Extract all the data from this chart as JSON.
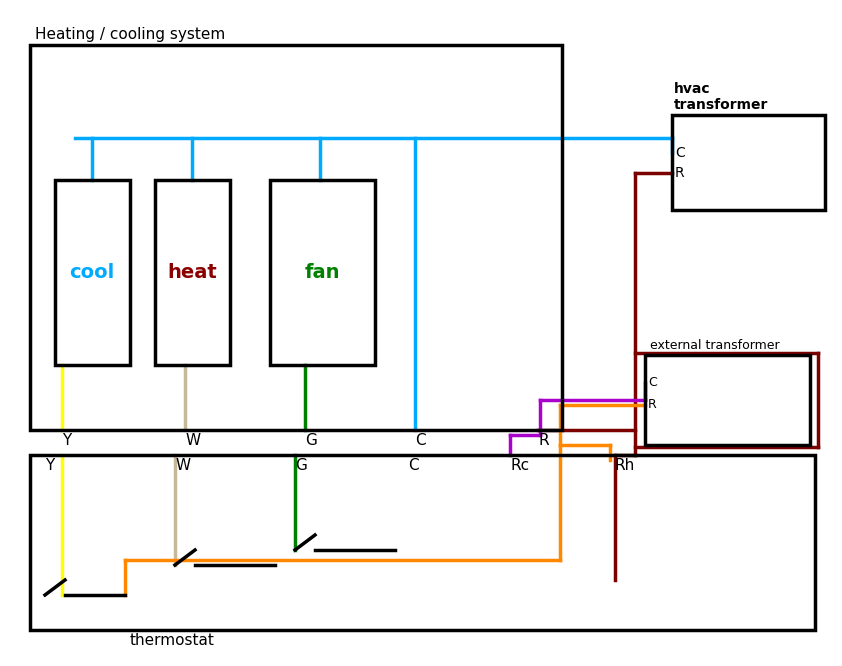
{
  "title_heating": "Heating / cooling system",
  "title_thermostat": "thermostat",
  "title_hvac": "hvac\ntransformer",
  "title_external": "external transformer",
  "bg_color": "#ffffff",
  "wire_colors": {
    "yellow": "#ffff00",
    "tan": "#c8b89a",
    "green": "#008000",
    "cyan": "#00aaff",
    "purple": "#aa00cc",
    "orange": "#ff8800",
    "darkred": "#7b0000",
    "black": "#000000"
  },
  "component_labels": {
    "cool": "cool",
    "cool_color": "#00aaff",
    "heat": "heat",
    "heat_color": "#8b0000",
    "fan": "fan",
    "fan_color": "#008000"
  }
}
